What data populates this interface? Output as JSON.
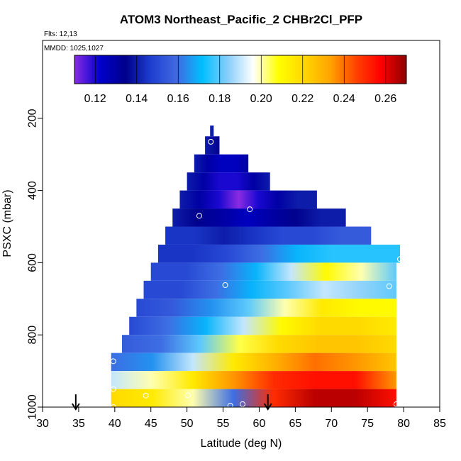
{
  "chart_data": {
    "type": "heatmap",
    "title": "ATOM3 Northeast_Pacific_2 CHBr2Cl_PFP",
    "flights_label": "Flts: 12,13",
    "dates_label": "MMDD: 1025,1027",
    "xlabel": "Latitude (deg N)",
    "ylabel": "PSXC (mbar)",
    "xlim": [
      30,
      85
    ],
    "ylim": [
      1000,
      0
    ],
    "x_ticks": [
      "30",
      "35",
      "40",
      "45",
      "50",
      "55",
      "60",
      "65",
      "70",
      "75",
      "80",
      "85"
    ],
    "y_ticks": [
      "200",
      "400",
      "600",
      "800",
      "1000"
    ],
    "y_tick_values": [
      200,
      400,
      600,
      800,
      1000
    ],
    "colorbar": {
      "min": 0.11,
      "max": 0.27,
      "ticks": [
        "0.12",
        "0.14",
        "0.16",
        "0.18",
        "0.20",
        "0.22",
        "0.24",
        "0.26"
      ],
      "tick_values": [
        0.12,
        0.14,
        0.16,
        0.18,
        0.2,
        0.22,
        0.24,
        0.26
      ],
      "colors": [
        "#8a2be2",
        "#0000cd",
        "#00008b",
        "#1e3fd0",
        "#4169e1",
        "#00bfff",
        "#87cefa",
        "#ffffff",
        "#ffff00",
        "#ffd700",
        "#ffa500",
        "#ff4500",
        "#ff0000",
        "#8b0000"
      ]
    },
    "rows": [
      {
        "p_top": 220,
        "p_bot": 250,
        "lat_min": 53.2,
        "lat_max": 53.7,
        "values": [
          0.14
        ]
      },
      {
        "p_top": 250,
        "p_bot": 300,
        "lat_min": 52.5,
        "lat_max": 54.5,
        "values": [
          0.14,
          0.135
        ]
      },
      {
        "p_top": 300,
        "p_bot": 350,
        "lat_min": 51.0,
        "lat_max": 58.5,
        "values": [
          0.14,
          0.13,
          0.125,
          0.125,
          0.13
        ]
      },
      {
        "p_top": 350,
        "p_bot": 400,
        "lat_min": 50.0,
        "lat_max": 61.5,
        "values": [
          0.14,
          0.13,
          0.12,
          0.12,
          0.13,
          0.14
        ]
      },
      {
        "p_top": 400,
        "p_bot": 450,
        "lat_min": 49.0,
        "lat_max": 68.0,
        "values": [
          0.14,
          0.13,
          0.12,
          0.11,
          0.12,
          0.13,
          0.14,
          0.14
        ]
      },
      {
        "p_top": 450,
        "p_bot": 500,
        "lat_min": 48.0,
        "lat_max": 72.0,
        "values": [
          0.14,
          0.135,
          0.13,
          0.125,
          0.13,
          0.135,
          0.14,
          0.14
        ]
      },
      {
        "p_top": 500,
        "p_bot": 550,
        "lat_min": 47.0,
        "lat_max": 75.5,
        "values": [
          0.145,
          0.145,
          0.14,
          0.145,
          0.15,
          0.15,
          0.155,
          0.155
        ]
      },
      {
        "p_top": 550,
        "p_bot": 600,
        "lat_min": 46.0,
        "lat_max": 79.5,
        "values": [
          0.145,
          0.145,
          0.15,
          0.16,
          0.17,
          0.175,
          0.175,
          0.175
        ]
      },
      {
        "p_top": 600,
        "p_bot": 650,
        "lat_min": 45.0,
        "lat_max": 79.0,
        "values": [
          0.15,
          0.15,
          0.16,
          0.17,
          0.19,
          0.21,
          0.2,
          0.18
        ]
      },
      {
        "p_top": 650,
        "p_bot": 700,
        "lat_min": 44.0,
        "lat_max": 79.0,
        "values": [
          0.15,
          0.15,
          0.16,
          0.17,
          0.18,
          0.19,
          0.185,
          0.18
        ]
      },
      {
        "p_top": 700,
        "p_bot": 750,
        "lat_min": 43.0,
        "lat_max": 79.0,
        "values": [
          0.15,
          0.155,
          0.165,
          0.18,
          0.2,
          0.215,
          0.21,
          0.21
        ]
      },
      {
        "p_top": 750,
        "p_bot": 800,
        "lat_min": 42.0,
        "lat_max": 79.0,
        "values": [
          0.15,
          0.16,
          0.17,
          0.19,
          0.21,
          0.22,
          0.22,
          0.215
        ]
      },
      {
        "p_top": 800,
        "p_bot": 850,
        "lat_min": 41.0,
        "lat_max": 79.0,
        "values": [
          0.155,
          0.16,
          0.18,
          0.205,
          0.22,
          0.225,
          0.225,
          0.22
        ]
      },
      {
        "p_top": 850,
        "p_bot": 900,
        "lat_min": 39.5,
        "lat_max": 79.0,
        "values": [
          0.16,
          0.165,
          0.19,
          0.215,
          0.23,
          0.24,
          0.235,
          0.225
        ]
      },
      {
        "p_top": 900,
        "p_bot": 950,
        "lat_min": 39.5,
        "lat_max": 79.0,
        "values": [
          0.19,
          0.2,
          0.215,
          0.235,
          0.25,
          0.255,
          0.255,
          0.235
        ]
      },
      {
        "p_top": 950,
        "p_bot": 1000,
        "lat_min": 39.5,
        "lat_max": 79.0,
        "values": [
          0.22,
          0.215,
          0.2,
          0.16,
          0.25,
          0.265,
          0.265,
          0.255
        ]
      }
    ],
    "sample_points": [
      {
        "lat": 53.3,
        "p": 265
      },
      {
        "lat": 58.7,
        "p": 452
      },
      {
        "lat": 51.7,
        "p": 470
      },
      {
        "lat": 79.5,
        "p": 590
      },
      {
        "lat": 55.3,
        "p": 662
      },
      {
        "lat": 78.0,
        "p": 665
      },
      {
        "lat": 39.8,
        "p": 873
      },
      {
        "lat": 39.8,
        "p": 950
      },
      {
        "lat": 44.3,
        "p": 968
      },
      {
        "lat": 50.1,
        "p": 967
      },
      {
        "lat": 57.7,
        "p": 992
      },
      {
        "lat": 56.0,
        "p": 996
      },
      {
        "lat": 39.8,
        "p": 1000
      },
      {
        "lat": 79.0,
        "p": 992
      }
    ],
    "arrows": [
      {
        "lat": 34.6
      },
      {
        "lat": 61.2
      }
    ]
  }
}
